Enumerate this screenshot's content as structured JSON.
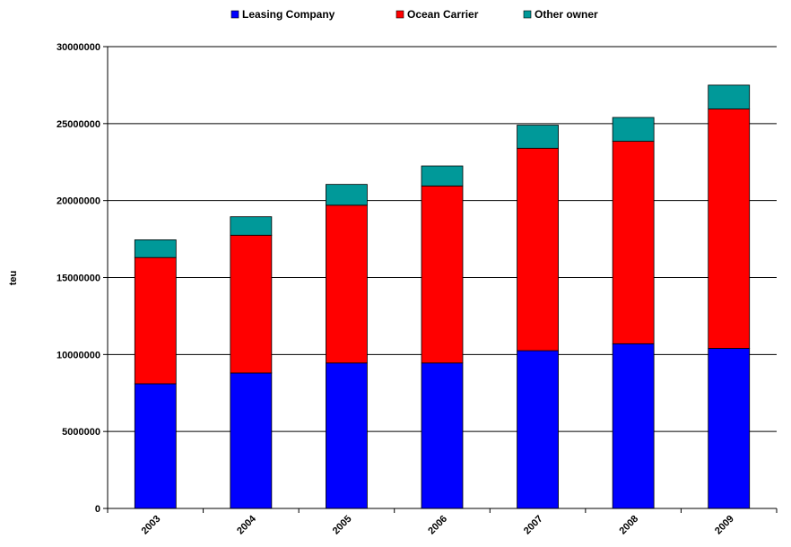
{
  "chart_data": {
    "type": "bar",
    "stacked": true,
    "categories": [
      "2003",
      "2004",
      "2005",
      "2006",
      "2007",
      "2008",
      "2009"
    ],
    "series": [
      {
        "name": "Leasing Company",
        "color": "#0000FF",
        "values": [
          8100000,
          8800000,
          9450000,
          9450000,
          10250000,
          10700000,
          10400000
        ]
      },
      {
        "name": "Ocean Carrier",
        "color": "#FF0000",
        "values": [
          8200000,
          8950000,
          10250000,
          11500000,
          13150000,
          13150000,
          15550000
        ]
      },
      {
        "name": "Other owner",
        "color": "#009999",
        "values": [
          1150000,
          1200000,
          1350000,
          1300000,
          1500000,
          1550000,
          1550000
        ]
      }
    ],
    "title": "",
    "xlabel": "",
    "ylabel": "teu",
    "ylim": [
      0,
      30000000
    ],
    "yticks": [
      "0",
      "5000000",
      "10000000",
      "15000000",
      "20000000",
      "25000000",
      "30000000"
    ],
    "grid": true,
    "legend_position": "top"
  }
}
